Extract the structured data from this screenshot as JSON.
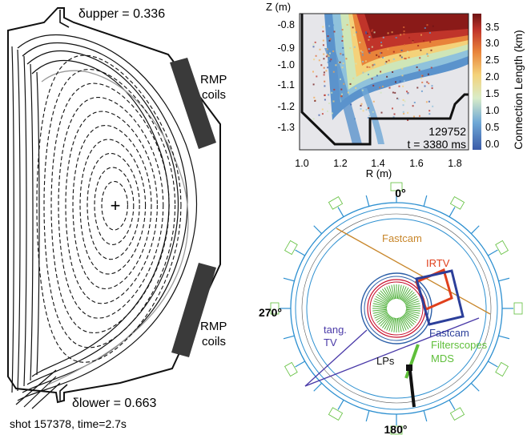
{
  "equilibrium": {
    "delta_upper": "δupper = 0.336",
    "delta_lower": "δlower = 0.663",
    "rmp_upper": [
      "RMP",
      "coils"
    ],
    "rmp_lower": [
      "RMP",
      "coils"
    ],
    "shot_label": "shot 157378,  time=2.7s",
    "axis_marker": "+"
  },
  "connection_plot": {
    "ylabel": "Z (m)",
    "xlabel": "R (m)",
    "yticks": [
      "-0.8",
      "-0.9",
      "-1.0",
      "-1.1",
      "-1.2",
      "-1.3"
    ],
    "xticks": [
      "1.0",
      "1.2",
      "1.4",
      "1.6",
      "1.8"
    ],
    "colorbar_label": "Connection Length (km)",
    "colorbar_ticks": [
      "3.5",
      "3.0",
      "2.5",
      "2.0",
      "1.5",
      "1.0",
      "0.5",
      "0.0"
    ],
    "shot": "129752",
    "time": "t = 3380 ms"
  },
  "topview": {
    "angle_top": "0°",
    "angle_left": "270°",
    "angle_bottom": "180°",
    "diagnostics": [
      {
        "key": "fastcam_top",
        "text": "Fastcam",
        "color": "#c8862a"
      },
      {
        "key": "irtv",
        "text": "IRTV",
        "color": "#e0401c"
      },
      {
        "key": "fastcam_blue",
        "text": "Fastcam",
        "color": "#2c3f9a"
      },
      {
        "key": "filterscopes",
        "text": "Filterscopes",
        "color": "#5fbf3a"
      },
      {
        "key": "mds",
        "text": "MDS",
        "color": "#5fbf3a"
      },
      {
        "key": "tangtv",
        "text": "tang.\nTV",
        "color": "#4a3aa8"
      },
      {
        "key": "lps",
        "text": "LPs",
        "color": "#111111"
      }
    ]
  }
}
